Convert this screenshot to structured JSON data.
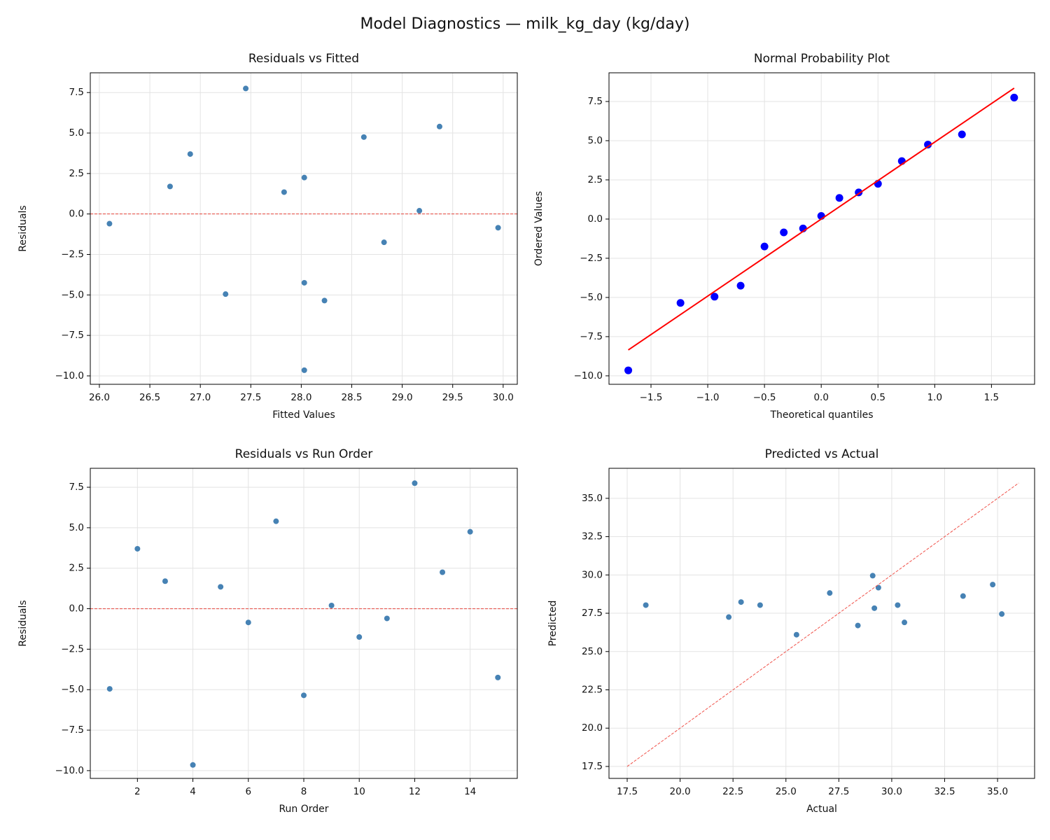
{
  "title": "Model Diagnostics — milk_kg_day (kg/day)",
  "chart_data": [
    {
      "type": "scatter",
      "title": "Residuals vs Fitted",
      "xlabel": "Fitted Values",
      "ylabel": "Residuals",
      "series": [
        {
          "color": "#4682b4",
          "x": [
            27.25,
            26.9,
            26.7,
            28.03,
            27.83,
            29.95,
            29.37,
            28.23,
            29.17,
            28.82,
            26.1,
            27.45,
            28.03,
            28.62,
            28.03
          ],
          "values": [
            -4.95,
            3.7,
            1.7,
            -9.65,
            1.35,
            -0.85,
            5.4,
            -5.35,
            0.2,
            -1.75,
            -0.6,
            7.75,
            2.25,
            4.75,
            -4.25
          ]
        }
      ],
      "hline": 0,
      "hline_color": "#e8453c",
      "xlim": [
        25.91,
        30.14
      ],
      "ylim": [
        -10.52,
        8.72
      ],
      "xticks": [
        {
          "value": 26,
          "label": "26.0"
        },
        26.5,
        {
          "value": 27,
          "label": "27.0"
        },
        27.5,
        {
          "value": 28,
          "label": "28.0"
        },
        28.5,
        {
          "value": 29,
          "label": "29.0"
        },
        29.5,
        {
          "value": 30,
          "label": "30.0"
        }
      ],
      "yticks": [
        {
          "value": -10,
          "label": "−10.0"
        },
        {
          "value": -7.5,
          "label": "−7.5"
        },
        {
          "value": -5,
          "label": "−5.0"
        },
        {
          "value": -2.5,
          "label": "−2.5"
        },
        {
          "value": 0,
          "label": "0.0"
        },
        2.5,
        {
          "value": 5,
          "label": "5.0"
        },
        7.5
      ],
      "grid": true
    },
    {
      "type": "scatter",
      "title": "Normal Probability Plot",
      "xlabel": "Theoretical quantiles",
      "ylabel": "Ordered Values",
      "series": [
        {
          "color": "#0000ff",
          "x": [
            -1.7,
            -1.24,
            -0.94,
            -0.71,
            -0.5,
            -0.33,
            -0.16,
            0,
            0.16,
            0.33,
            0.5,
            0.71,
            0.94,
            1.24,
            1.7
          ],
          "values": [
            -9.65,
            -5.35,
            -4.95,
            -4.25,
            -1.75,
            -0.85,
            -0.6,
            0.2,
            1.35,
            1.7,
            2.25,
            3.7,
            4.75,
            5.4,
            7.75
          ]
        },
        {
          "type": "line",
          "color": "#ff0000",
          "x": [
            -1.7,
            1.7
          ],
          "values": [
            -8.35,
            8.35
          ]
        }
      ],
      "xlim": [
        -1.87,
        1.88
      ],
      "ylim": [
        -10.54,
        9.33
      ],
      "xticks": [
        {
          "value": -1.5,
          "label": "−1.5"
        },
        {
          "value": -1,
          "label": "−1.0"
        },
        {
          "value": -0.5,
          "label": "−0.5"
        },
        {
          "value": 0,
          "label": "0.0"
        },
        0.5,
        {
          "value": 1,
          "label": "1.0"
        },
        1.5
      ],
      "yticks": [
        {
          "value": -10,
          "label": "−10.0"
        },
        {
          "value": -7.5,
          "label": "−7.5"
        },
        {
          "value": -5,
          "label": "−5.0"
        },
        {
          "value": -2.5,
          "label": "−2.5"
        },
        {
          "value": 0,
          "label": "0.0"
        },
        2.5,
        {
          "value": 5,
          "label": "5.0"
        },
        7.5
      ],
      "grid": true
    },
    {
      "type": "scatter",
      "title": "Residuals vs Run Order",
      "xlabel": "Run Order",
      "ylabel": "Residuals",
      "series": [
        {
          "color": "#4682b4",
          "x": [
            1,
            2,
            3,
            4,
            5,
            6,
            7,
            8,
            9,
            10,
            11,
            12,
            13,
            14,
            15
          ],
          "values": [
            -4.95,
            3.7,
            1.7,
            -9.65,
            1.35,
            -0.85,
            5.4,
            -5.35,
            0.2,
            -1.75,
            -0.6,
            7.75,
            2.25,
            4.75,
            -4.25
          ]
        }
      ],
      "hline": 0,
      "hline_color": "#e8453c",
      "xlim": [
        0.3,
        15.7
      ],
      "ylim": [
        -10.48,
        8.67
      ],
      "xticks": [
        2,
        4,
        6,
        8,
        10,
        12,
        14
      ],
      "yticks": [
        {
          "value": -10,
          "label": "−10.0"
        },
        {
          "value": -7.5,
          "label": "−7.5"
        },
        {
          "value": -5,
          "label": "−5.0"
        },
        {
          "value": -2.5,
          "label": "−2.5"
        },
        {
          "value": 0,
          "label": "0.0"
        },
        2.5,
        {
          "value": 5,
          "label": "5.0"
        },
        7.5
      ],
      "grid": true
    },
    {
      "type": "scatter",
      "title": "Predicted vs Actual",
      "xlabel": "Actual",
      "ylabel": "Predicted",
      "series": [
        {
          "color": "#4682b4",
          "x": [
            22.3,
            30.6,
            28.4,
            18.38,
            29.18,
            29.1,
            34.77,
            22.88,
            29.37,
            27.07,
            25.5,
            35.2,
            30.28,
            33.37,
            23.78
          ],
          "values": [
            27.25,
            26.9,
            26.7,
            28.03,
            27.83,
            29.95,
            29.37,
            28.23,
            29.17,
            28.82,
            26.1,
            27.45,
            28.03,
            28.62,
            28.03
          ]
        },
        {
          "type": "line",
          "style": "dashed",
          "color": "#f0524a",
          "x": [
            17.5,
            36
          ],
          "values": [
            17.5,
            36
          ]
        }
      ],
      "xlim": [
        16.64,
        36.75
      ],
      "ylim": [
        16.72,
        36.96
      ],
      "xticks": [
        17.5,
        {
          "value": 20,
          "label": "20.0"
        },
        22.5,
        {
          "value": 25,
          "label": "25.0"
        },
        27.5,
        {
          "value": 30,
          "label": "30.0"
        },
        32.5,
        {
          "value": 35,
          "label": "35.0"
        }
      ],
      "yticks": [
        17.5,
        {
          "value": 20,
          "label": "20.0"
        },
        22.5,
        {
          "value": 25,
          "label": "25.0"
        },
        27.5,
        {
          "value": 30,
          "label": "30.0"
        },
        32.5,
        {
          "value": 35,
          "label": "35.0"
        }
      ],
      "grid": true
    }
  ]
}
